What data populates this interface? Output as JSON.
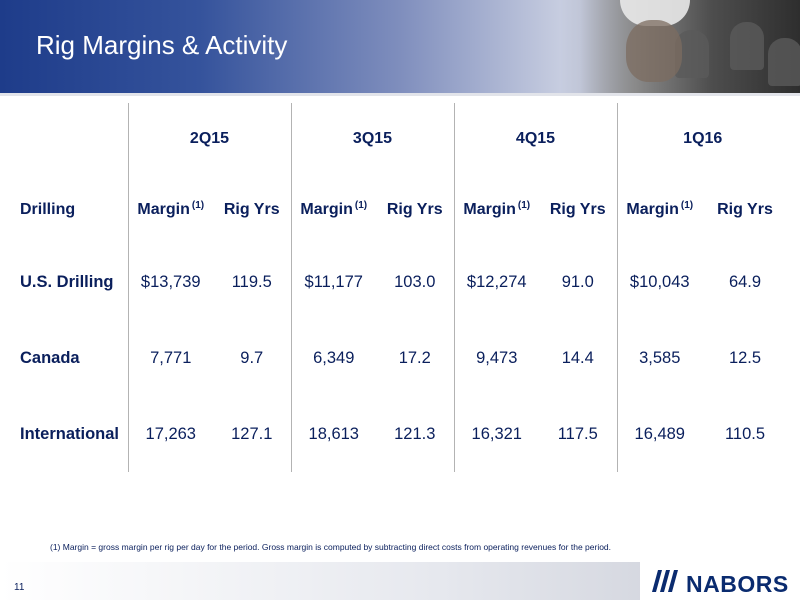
{
  "slide": {
    "title": "Rig Margins & Activity",
    "page_number": "11"
  },
  "table": {
    "row_header_label": "Drilling",
    "quarters": [
      "2Q15",
      "3Q15",
      "4Q15",
      "1Q16"
    ],
    "sub_headers": {
      "margin": "Margin",
      "margin_note": "(1)",
      "rig_years": "Rig Yrs"
    },
    "rows": [
      {
        "label": "U.S. Drilling",
        "values": [
          "$13,739",
          "119.5",
          "$11,177",
          "103.0",
          "$12,274",
          "91.0",
          "$10,043",
          "64.9"
        ]
      },
      {
        "label": "Canada",
        "values": [
          "7,771",
          "9.7",
          "6,349",
          "17.2",
          "9,473",
          "14.4",
          "3,585",
          "12.5"
        ]
      },
      {
        "label": "International",
        "values": [
          "17,263",
          "127.1",
          "18,613",
          "121.3",
          "16,321",
          "117.5",
          "16,489",
          "110.5"
        ]
      }
    ]
  },
  "footnote": "(1) Margin = gross margin per rig per day for the period.  Gross margin is computed by subtracting direct costs from operating revenues for the period.",
  "brand": {
    "logo_text": "NABORS",
    "colors": {
      "navy": "#0a1f5c",
      "banner_blue": "#1e3c8a",
      "logo_blue": "#0a2b6f"
    }
  }
}
